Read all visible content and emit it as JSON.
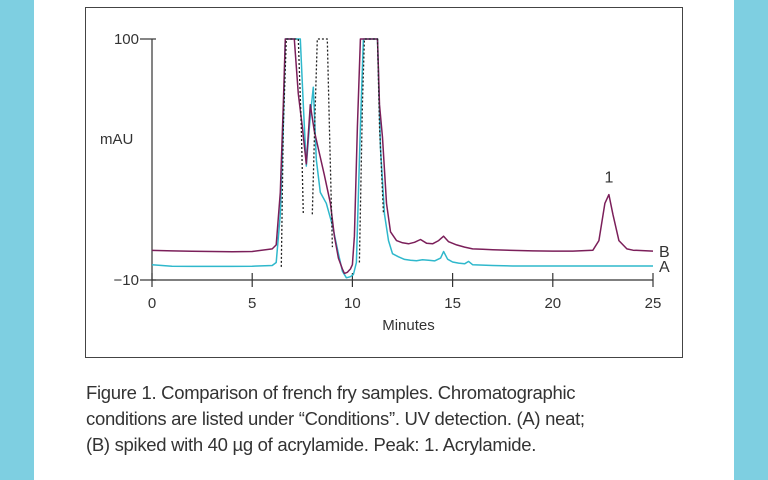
{
  "chart_data": {
    "type": "line",
    "ylabel": "mAU",
    "xlabel": "Minutes",
    "xlim": [
      0,
      25
    ],
    "ylim": [
      -10,
      100
    ],
    "x_ticks": [
      0,
      5,
      10,
      15,
      20,
      25
    ],
    "y_tick_labels": [
      "100",
      "−10"
    ],
    "peak_label": "1",
    "series": [
      {
        "name": "A",
        "color": "#2fb8cc",
        "x": [
          0,
          1,
          2,
          3,
          4,
          5,
          6,
          6.2,
          6.4,
          6.55,
          6.65,
          7.0,
          7.4,
          7.55,
          7.7,
          7.9,
          8.05,
          8.2,
          8.4,
          8.7,
          9.0,
          9.3,
          9.5,
          9.7,
          9.9,
          10.05,
          10.2,
          10.4,
          10.55,
          10.7,
          11.0,
          11.25,
          11.4,
          11.6,
          11.8,
          12.0,
          12.3,
          12.6,
          12.9,
          13.2,
          13.5,
          13.8,
          14.1,
          14.4,
          14.55,
          14.75,
          15.0,
          15.3,
          15.6,
          15.8,
          16.0,
          17,
          18,
          19,
          20,
          21,
          22,
          23,
          24,
          25
        ],
        "y": [
          -3,
          -3.7,
          -3.8,
          -3.8,
          -3.8,
          -3.7,
          -3.4,
          -2,
          20,
          60,
          100,
          100,
          100,
          70,
          42,
          65,
          78,
          45,
          30,
          25,
          15,
          2,
          -6,
          -9,
          -8.5,
          -7.5,
          -2,
          60,
          100,
          100,
          100,
          100,
          50,
          20,
          8,
          2,
          0.6,
          -0.6,
          -1,
          -1.2,
          -0.8,
          -1,
          -1.3,
          0,
          3,
          -0.5,
          -1.8,
          -2.3,
          -2.6,
          -1.5,
          -3,
          -3.4,
          -3.6,
          -3.6,
          -3.6,
          -3.6,
          -3.6,
          -3.6,
          -3.6,
          -3.6
        ]
      },
      {
        "name": "B",
        "color": "#7b1f5a",
        "x": [
          0,
          1,
          2,
          3,
          4,
          5,
          6,
          6.2,
          6.4,
          6.55,
          6.65,
          7.0,
          7.1,
          7.3,
          7.5,
          7.7,
          7.9,
          8.1,
          8.3,
          8.6,
          8.9,
          9.1,
          9.3,
          9.5,
          9.6,
          9.75,
          9.9,
          10.0,
          10.1,
          10.25,
          10.4,
          10.55,
          10.7,
          11.0,
          11.25,
          11.35,
          11.5,
          11.7,
          11.9,
          12.2,
          12.5,
          12.8,
          13.1,
          13.4,
          13.7,
          14.0,
          14.3,
          14.55,
          14.8,
          15.2,
          15.6,
          16.0,
          16.5,
          17,
          18,
          19,
          20,
          21,
          22.0,
          22.3,
          22.6,
          22.8,
          23.0,
          23.3,
          23.7,
          24,
          25
        ],
        "y": [
          3.5,
          3.3,
          3.1,
          3.0,
          2.9,
          3.0,
          4.2,
          6,
          30,
          70,
          100,
          100,
          100,
          75,
          60,
          43,
          70,
          58,
          50,
          38,
          25,
          10,
          0,
          -5,
          -7,
          -6.5,
          -5,
          -3,
          10,
          60,
          100,
          100,
          100,
          100,
          100,
          70,
          55,
          25,
          12,
          8,
          7,
          6.5,
          7.2,
          8.5,
          6.8,
          6.5,
          8,
          10,
          7.5,
          6,
          5,
          4.2,
          4,
          3.8,
          3.5,
          3.3,
          3.2,
          3.2,
          3.6,
          8,
          25,
          29,
          20,
          8,
          4.2,
          3.6,
          3.2
        ]
      },
      {
        "name": "",
        "color": "#222222",
        "style": "dotted",
        "x": [
          6.45,
          6.55,
          6.7,
          7.0,
          7.3,
          7.45,
          7.55
        ],
        "y": [
          -4,
          60,
          100,
          100,
          100,
          60,
          20
        ]
      },
      {
        "name": "",
        "color": "#222222",
        "style": "dotted",
        "x": [
          8.0,
          8.15,
          8.25,
          8.3,
          8.5,
          8.7,
          8.75,
          8.85,
          9.0
        ],
        "y": [
          20,
          70,
          100,
          100,
          100,
          100,
          100,
          60,
          5
        ]
      },
      {
        "name": "",
        "color": "#222222",
        "style": "dotted",
        "x": [
          10.35,
          10.5,
          10.6,
          11.0,
          11.25,
          11.35,
          11.55
        ],
        "y": [
          -2,
          70,
          100,
          100,
          100,
          60,
          20
        ]
      }
    ]
  },
  "caption": {
    "line1": "Figure 1. Comparison of french fry samples. Chromatographic",
    "line2": "conditions are listed under “Conditions”. UV detection. (A) neat;",
    "line3": "(B) spiked with 40 µg of acrylamide. Peak: 1. Acrylamide."
  }
}
